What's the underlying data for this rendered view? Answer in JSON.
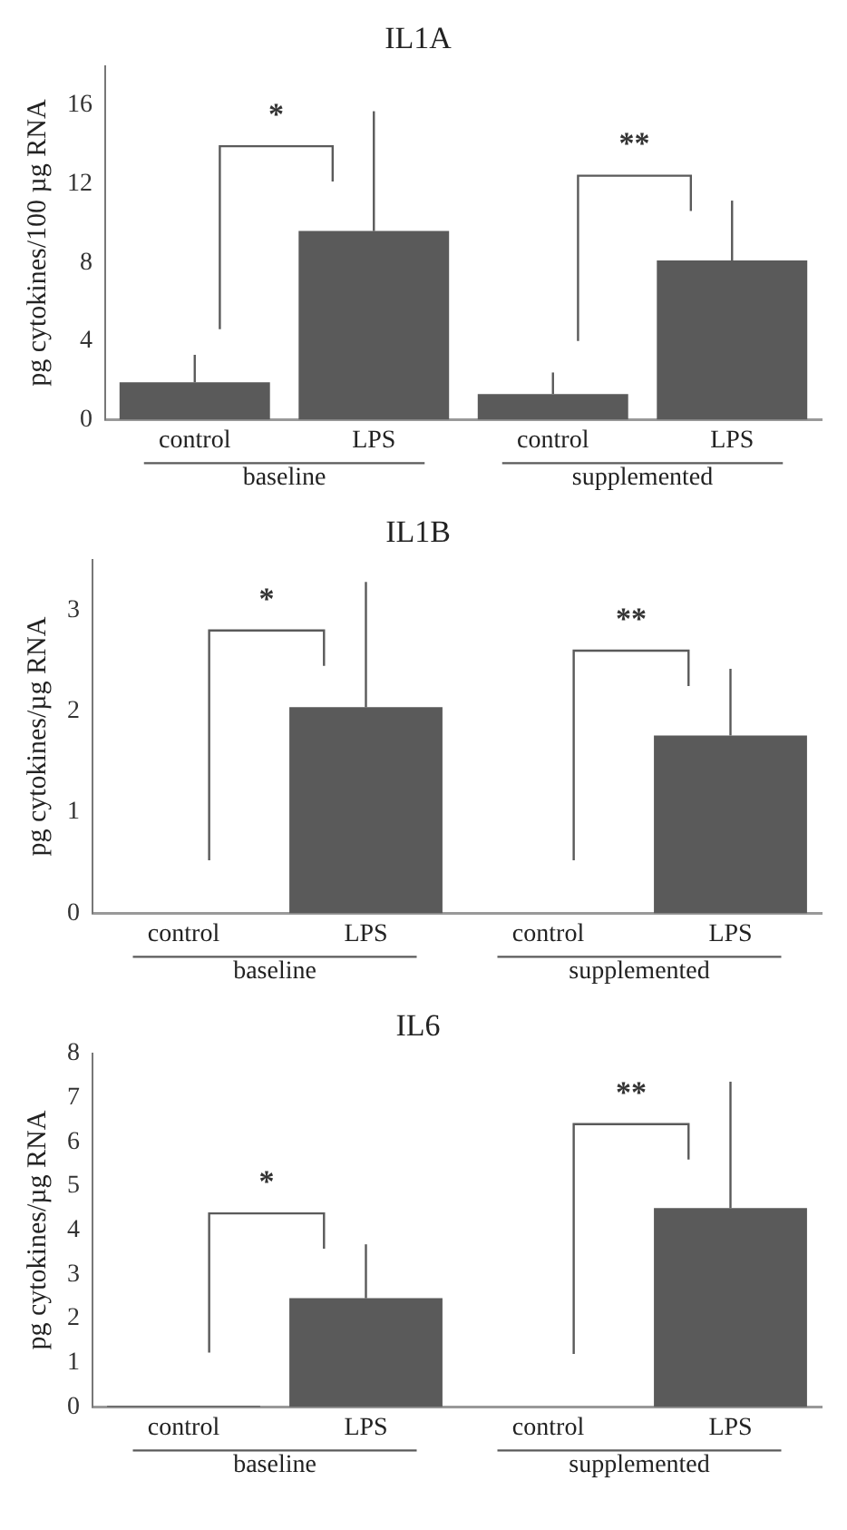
{
  "chart_data": [
    {
      "type": "bar",
      "title": "IL1A",
      "ylabel": "pg cytokines/100 µg RNA",
      "categories": [
        "control",
        "LPS",
        "control",
        "LPS"
      ],
      "values": [
        1.9,
        9.6,
        1.3,
        8.1
      ],
      "errors": [
        [
          1.9,
          3.3
        ],
        [
          9.6,
          15.7
        ],
        [
          1.3,
          2.4
        ],
        [
          8.1,
          11.15
        ]
      ],
      "color": "#5a5a5a",
      "ylim": [
        0,
        18
      ],
      "yticks": [
        0,
        4,
        8,
        12,
        16
      ],
      "grid": false,
      "legend": false,
      "annotations": [
        "*",
        "**",
        "baseline",
        "supplemented"
      ]
    },
    {
      "type": "bar",
      "title": "IL1B",
      "ylabel": "pg cytokines/µg RNA",
      "categories": [
        "control",
        "LPS",
        "control",
        "LPS"
      ],
      "values": [
        0,
        2.04,
        0,
        1.76
      ],
      "errors": [
        null,
        [
          2.04,
          3.28
        ],
        null,
        [
          1.76,
          2.42
        ]
      ],
      "color": "#5a5a5a",
      "ylim": [
        0,
        3.5
      ],
      "yticks": [
        0,
        1,
        2,
        3
      ],
      "grid": false,
      "legend": false,
      "annotations": [
        "*",
        "**",
        "baseline",
        "supplemented"
      ]
    },
    {
      "type": "bar",
      "title": "IL6",
      "ylabel": "pg cytokines/µg RNA",
      "categories": [
        "control",
        "LPS",
        "control",
        "LPS"
      ],
      "values": [
        0.03,
        2.46,
        0,
        4.5
      ],
      "errors": [
        null,
        [
          2.46,
          3.68
        ],
        null,
        [
          4.5,
          7.36
        ]
      ],
      "color": "#5a5a5a",
      "ylim": [
        0,
        8
      ],
      "yticks": [
        0,
        1,
        2,
        3,
        4,
        5,
        6,
        7,
        8
      ],
      "grid": false,
      "legend": false,
      "annotations": [
        "*",
        "**",
        "baseline",
        "supplemented"
      ]
    }
  ]
}
